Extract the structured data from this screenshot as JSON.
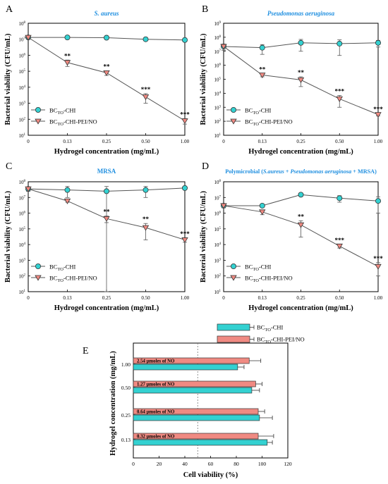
{
  "colors": {
    "cyan": "#33d1d1",
    "salmon": "#f08a82",
    "axis": "#000000",
    "title_blue": "#1f8fe0"
  },
  "chart_data": [
    {
      "panel_letter": "A",
      "type": "line",
      "title": "S. aureus",
      "title_italic": true,
      "xlabel": "Hydrogel concentration (mg/mL)",
      "ylabel": "Bacterial viability (CFU/mL)",
      "x": [
        "0",
        "0.13",
        "0.25",
        "0.50",
        "1.00"
      ],
      "yscale": "log",
      "ylim": [
        10,
        100000000
      ],
      "yticks": [
        "10^1",
        "10^2",
        "10^3",
        "10^4",
        "10^5",
        "10^6",
        "10^7",
        "10^8"
      ],
      "legend_position": "lower-left",
      "series": [
        {
          "name": "BCTO-CHI",
          "name_base": "BC",
          "name_sub": "TO",
          "name_tail": "-CHI",
          "marker": "circle",
          "color": "#33d1d1",
          "values": [
            13000000,
            13000000,
            12500000,
            10000000,
            9000000
          ],
          "errors": [
            2000000,
            1500000,
            1500000,
            1500000,
            1000000
          ],
          "labels": [
            "",
            "",
            "",
            "",
            ""
          ]
        },
        {
          "name": "BCTO-CHI-PEI/NO",
          "name_base": "BC",
          "name_sub": "TO",
          "name_tail": "-CHI-PEI/NO",
          "marker": "triangle",
          "color": "#f08a82",
          "values": [
            13000000,
            350000,
            80000,
            2500,
            80
          ],
          "errors": [
            2000000,
            150000,
            25000,
            1500,
            30
          ],
          "labels": [
            "",
            "**",
            "**",
            "***",
            "***"
          ]
        }
      ]
    },
    {
      "panel_letter": "B",
      "type": "line",
      "title": "Pseudomonas aeruginosa",
      "title_italic": true,
      "xlabel": "Hydrogel concentration (mg/mL)",
      "ylabel": "Bacterial viability (CFU/mL)",
      "x": [
        "0",
        "0.13",
        "0.25",
        "0.50",
        "1.00"
      ],
      "yscale": "log",
      "ylim": [
        10,
        1000000000
      ],
      "yticks": [
        "10^1",
        "10^2",
        "10^3",
        "10^4",
        "10^5",
        "10^6",
        "10^7",
        "10^8",
        "10^9"
      ],
      "legend_position": "lower-left",
      "series": [
        {
          "name": "BCTO-CHI",
          "name_base": "BC",
          "name_sub": "TO",
          "name_tail": "-CHI",
          "marker": "circle",
          "color": "#33d1d1",
          "values": [
            22000000,
            18000000,
            40000000,
            35000000,
            40000000
          ],
          "errors": [
            10000000,
            12000000,
            30000000,
            30000000,
            20000000
          ],
          "labels": [
            "",
            "",
            "",
            "",
            ""
          ]
        },
        {
          "name": "BCTO-CHI-PEI/NO",
          "name_base": "BC",
          "name_sub": "TO",
          "name_tail": "-CHI-PEI/NO",
          "marker": "triangle",
          "color": "#f08a82",
          "values": [
            22000000,
            200000,
            90000,
            4000,
            300
          ],
          "errors": [
            10000000,
            50000,
            60000,
            3000,
            60
          ],
          "labels": [
            "",
            "**",
            "**",
            "***",
            "***"
          ]
        }
      ]
    },
    {
      "panel_letter": "C",
      "type": "line",
      "title": "MRSA",
      "title_italic": false,
      "xlabel": "Hydrogel concentration (mg/mL)",
      "ylabel": "Bacterial viability (CFU/mL)",
      "x": [
        "0",
        "0.13",
        "0.25",
        "0.50",
        "1.00"
      ],
      "yscale": "log",
      "ylim": [
        10,
        100000000
      ],
      "yticks": [
        "10^1",
        "10^2",
        "10^3",
        "10^4",
        "10^5",
        "10^6",
        "10^7",
        "10^8"
      ],
      "legend_position": "lower-left",
      "series": [
        {
          "name": "BCTO-CHI",
          "name_base": "BC",
          "name_sub": "TO",
          "name_tail": "-CHI",
          "marker": "circle",
          "color": "#33d1d1",
          "values": [
            35000000,
            30000000,
            25000000,
            30000000,
            40000000
          ],
          "errors": [
            10000000,
            20000000,
            25000000,
            20000000,
            8000000
          ],
          "labels": [
            "",
            "",
            "",
            "",
            ""
          ]
        },
        {
          "name": "BCTO-CHI-PEI/NO",
          "name_base": "BC",
          "name_sub": "TO",
          "name_tail": "-CHI-PEI/NO",
          "marker": "triangle",
          "color": "#f08a82",
          "values": [
            35000000,
            6000000,
            450000,
            120000,
            20000
          ],
          "errors": [
            10000000,
            1000000,
            200000,
            100000,
            6000
          ],
          "labels": [
            "",
            "",
            "**",
            "**",
            "***"
          ]
        }
      ]
    },
    {
      "panel_letter": "D",
      "type": "line",
      "title": "Polymicrobial (S.aureus + Pseudomonas aeruginosa + MRSA)",
      "title_parts": [
        {
          "text": "Polymicrobial (",
          "italic": false
        },
        {
          "text": "S.aureus + Pseudomonas aeruginosa",
          "italic": true
        },
        {
          "text": " + MRSA)",
          "italic": false
        }
      ],
      "xlabel": "Hydrogel concentration (mg/mL)",
      "ylabel": "Bacterial viability (CFU/mL)",
      "x": [
        "0",
        "0.13",
        "0.25",
        "0.50",
        "1.00"
      ],
      "yscale": "log",
      "ylim": [
        10,
        100000000
      ],
      "yticks": [
        "10^1",
        "10^2",
        "10^3",
        "10^4",
        "10^5",
        "10^6",
        "10^7",
        "10^8"
      ],
      "legend_position": "lower-left",
      "series": [
        {
          "name": "BCTO-CHI",
          "name_base": "BC",
          "name_sub": "TO",
          "name_tail": "-CHI",
          "marker": "circle",
          "color": "#33d1d1",
          "values": [
            3000000,
            3000000,
            15000000,
            9000000,
            6000000
          ],
          "errors": [
            800000,
            600000,
            3000000,
            4000000,
            5000000
          ],
          "labels": [
            "",
            "",
            "",
            "",
            ""
          ]
        },
        {
          "name": "BCTO-CHI-PEI/NO",
          "name_base": "BC",
          "name_sub": "TO",
          "name_tail": "-CHI-PEI/NO",
          "marker": "triangle",
          "color": "#f08a82",
          "values": [
            3000000,
            1200000,
            180000,
            8000,
            400
          ],
          "errors": [
            800000,
            400000,
            150000,
            2000,
            300
          ],
          "labels": [
            "",
            "",
            "**",
            "***",
            "***"
          ]
        }
      ]
    },
    {
      "panel_letter": "E",
      "type": "bar",
      "orientation": "horizontal",
      "title": "",
      "xlabel": "Cell viability (%)",
      "ylabel": "Hydrogel concentration (mg/mL)",
      "categories": [
        "1.00",
        "0.50",
        "0.25",
        "0.13"
      ],
      "xlim": [
        0,
        120
      ],
      "xticks": [
        0,
        20,
        40,
        60,
        80,
        100,
        120
      ],
      "reference_line": 50,
      "legend_position": "top-right",
      "series": [
        {
          "name": "BCTO-CHI",
          "name_base": "BC",
          "name_sub": "TO",
          "name_tail": "-CHI",
          "color": "#33d1d1",
          "values": [
            81,
            92,
            98,
            104
          ],
          "errors": [
            5,
            6,
            10,
            4
          ]
        },
        {
          "name": "BCTO-CHI-PEI/NO",
          "name_base": "BC",
          "name_sub": "TO",
          "name_tail": "-CHI-PEI/NO",
          "color": "#f08a82",
          "values": [
            90,
            95,
            97,
            97
          ],
          "errors": [
            9,
            5,
            5,
            12
          ]
        }
      ],
      "annotations": [
        "2.54 µmoles of NO",
        "1.27 µmoles of NO",
        "0.64 µmoles of NO",
        "0.32 µmoles of NO"
      ]
    }
  ]
}
